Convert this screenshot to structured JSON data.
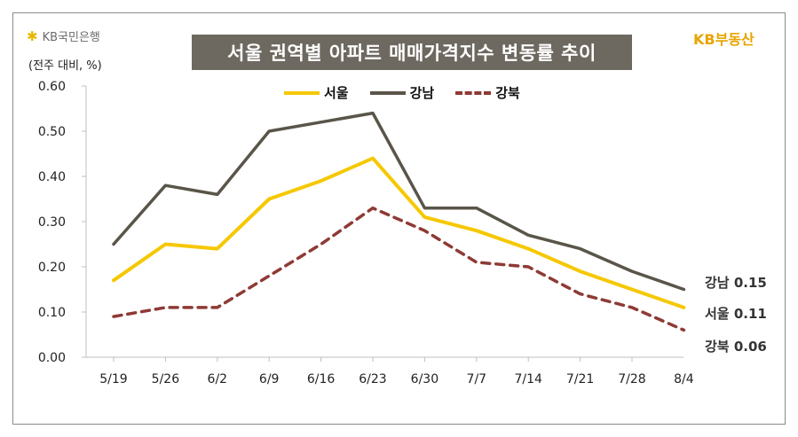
{
  "header": {
    "logo_left": "KB국민은행",
    "unit_label": "(전주 대비, %)",
    "title": "서울 권역별 아파트 매매가격지수 변동률 추이",
    "logo_right": "KB부동산"
  },
  "colors": {
    "seoul": "#f5c800",
    "gangnam": "#5a5549",
    "gangbuk": "#8e3a35",
    "title_bg": "#6e6960",
    "brand": "#e8a400"
  },
  "icons": {
    "logo_star": "kb-star-icon"
  },
  "chart_data": {
    "type": "line",
    "title": "서울 권역별 아파트 매매가격지수 변동률 추이",
    "ylabel": "(전주 대비, %)",
    "xlabel": "",
    "categories": [
      "5/19",
      "5/26",
      "6/2",
      "6/9",
      "6/16",
      "6/23",
      "6/30",
      "7/7",
      "7/14",
      "7/21",
      "7/28",
      "8/4"
    ],
    "ylim": [
      0,
      0.6
    ],
    "yticks": [
      "0.00",
      "0.10",
      "0.20",
      "0.30",
      "0.40",
      "0.50",
      "0.60"
    ],
    "grid": false,
    "legend_position": "top-center",
    "series": [
      {
        "name": "서울",
        "values": [
          0.17,
          0.25,
          0.24,
          0.35,
          0.39,
          0.44,
          0.31,
          0.28,
          0.24,
          0.19,
          0.15,
          0.11
        ],
        "color": "#f5c800",
        "style": "solid"
      },
      {
        "name": "강남",
        "values": [
          0.25,
          0.38,
          0.36,
          0.5,
          0.52,
          0.54,
          0.33,
          0.33,
          0.27,
          0.24,
          0.19,
          0.15
        ],
        "color": "#5a5549",
        "style": "solid"
      },
      {
        "name": "강북",
        "values": [
          0.09,
          0.11,
          0.11,
          0.18,
          0.25,
          0.33,
          0.28,
          0.21,
          0.2,
          0.14,
          0.11,
          0.06
        ],
        "color": "#8e3a35",
        "style": "dashed"
      }
    ],
    "annotations": [
      {
        "series": "강남",
        "text": "강남 0.15"
      },
      {
        "series": "서울",
        "text": "서울 0.11"
      },
      {
        "series": "강북",
        "text": "강북 0.06"
      }
    ]
  }
}
